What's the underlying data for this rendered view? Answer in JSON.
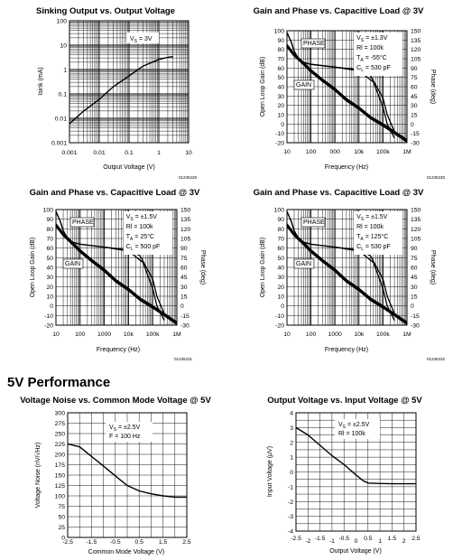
{
  "page": {
    "section_title": "5V Performance"
  },
  "chart_data": [
    {
      "type": "line",
      "title": "Sinking Output vs. Output Voltage",
      "xlabel": "Output Voltage (V)",
      "ylabel": "Isink (mA)",
      "figure_code": "01235229",
      "x_scale": "log",
      "y_scale": "log",
      "xlim": [
        0.001,
        10
      ],
      "ylim": [
        0.001,
        100
      ],
      "x_ticks": [
        "0.001",
        "0.01",
        "0.1",
        "1",
        "10"
      ],
      "y_ticks": [
        "100",
        "10",
        "1",
        "0.1",
        "0.01",
        "0.001"
      ],
      "annotations": [
        "VS = 3V"
      ],
      "series": [
        {
          "x": [
            0.001,
            0.003,
            0.01,
            0.03,
            0.1,
            0.3,
            1,
            2,
            3
          ],
          "values": [
            0.006,
            0.02,
            0.06,
            0.2,
            0.55,
            1.4,
            2.6,
            3.2,
            3.4
          ]
        }
      ]
    },
    {
      "type": "line",
      "title": "Gain and Phase vs. Capacitive Load @ 3V",
      "xlabel": "Frequency (Hz)",
      "ylabel": "Open Loop Gain (dB)",
      "y2label": "Phase (deg)",
      "figure_code": "01235230",
      "x_scale": "log",
      "xlim": [
        10,
        1000000
      ],
      "ylim": [
        -20,
        100
      ],
      "y2lim": [
        -30,
        150
      ],
      "x_ticks": [
        "10",
        "100",
        "000",
        "10k",
        "100k",
        "1M"
      ],
      "y_ticks": [
        "100",
        "90",
        "80",
        "70",
        "60",
        "50",
        "40",
        "30",
        "20",
        "10",
        "0",
        "-10",
        "-20"
      ],
      "y2_ticks": [
        "150",
        "135",
        "120",
        "105",
        "90",
        "75",
        "60",
        "45",
        "30",
        "15",
        "0",
        "-15",
        "-30"
      ],
      "annotations": [
        "VS = ±1.3V",
        "Rl = 100k",
        "TA = -55°C",
        "CL = 530 pF",
        "PHASE",
        "GAIN"
      ],
      "series": [
        {
          "x": [
            10,
            15,
            20,
            30,
            50,
            100,
            1000,
            10000,
            30000,
            100000,
            150000,
            300000
          ],
          "values": [
            98,
            88,
            78,
            70,
            66,
            64,
            61,
            58,
            52,
            28,
            10,
            -8
          ]
        },
        {
          "x": [
            10,
            15,
            20,
            30,
            50,
            100,
            1000,
            10000,
            40000,
            100000,
            150000,
            300000
          ],
          "values": [
            98,
            88,
            78,
            70,
            66,
            64,
            61,
            57,
            45,
            18,
            0,
            -15
          ]
        },
        {
          "x": [
            10,
            20,
            40,
            100,
            300,
            1000,
            3000,
            10000,
            30000,
            100000,
            300000,
            1000000
          ],
          "values": [
            85,
            75,
            68,
            58,
            48,
            38,
            27,
            18,
            8,
            0,
            -8,
            -17
          ]
        },
        {
          "x": [
            10,
            20,
            40,
            100,
            300,
            1000,
            3000,
            10000,
            30000,
            100000,
            300000,
            1000000
          ],
          "values": [
            83,
            73,
            66,
            56,
            46,
            36,
            25,
            16,
            6,
            -2,
            -10,
            -19
          ]
        }
      ]
    },
    {
      "type": "line",
      "title": "Gain and Phase vs. Capacitive Load @ 3V",
      "xlabel": "Frequency (Hz)",
      "ylabel": "Open Loop Gain (dB)",
      "y2label": "Phase (deg)",
      "figure_code": "01235231",
      "x_scale": "log",
      "xlim": [
        10,
        1000000
      ],
      "ylim": [
        -20,
        100
      ],
      "y2lim": [
        -30,
        150
      ],
      "x_ticks": [
        "10",
        "100",
        "1000",
        "10k",
        "100k",
        "1M"
      ],
      "y_ticks": [
        "100",
        "90",
        "80",
        "70",
        "60",
        "50",
        "40",
        "30",
        "20",
        "10",
        "0",
        "-10",
        "-20"
      ],
      "y2_ticks": [
        "150",
        "135",
        "120",
        "105",
        "90",
        "75",
        "60",
        "45",
        "30",
        "15",
        "0",
        "-15",
        "-30"
      ],
      "annotations": [
        "VS = ±1.5V",
        "Rl = 100k",
        "TA = 25°C",
        "CL = 500 pF",
        "PHASE",
        "GAIN"
      ],
      "series": [
        {
          "x": [
            10,
            15,
            20,
            30,
            50,
            100,
            1000,
            10000,
            30000,
            100000,
            150000,
            300000
          ],
          "values": [
            98,
            88,
            78,
            70,
            66,
            64,
            61,
            58,
            52,
            28,
            10,
            -8
          ]
        },
        {
          "x": [
            10,
            15,
            20,
            30,
            50,
            100,
            1000,
            10000,
            40000,
            100000,
            150000,
            300000
          ],
          "values": [
            98,
            88,
            78,
            70,
            66,
            64,
            61,
            57,
            45,
            18,
            0,
            -15
          ]
        },
        {
          "x": [
            10,
            20,
            40,
            100,
            300,
            1000,
            3000,
            10000,
            30000,
            100000,
            300000,
            1000000
          ],
          "values": [
            85,
            75,
            68,
            58,
            48,
            38,
            27,
            18,
            8,
            0,
            -8,
            -17
          ]
        },
        {
          "x": [
            10,
            20,
            40,
            100,
            300,
            1000,
            3000,
            10000,
            30000,
            100000,
            300000,
            1000000
          ],
          "values": [
            83,
            73,
            66,
            56,
            46,
            36,
            25,
            16,
            6,
            -2,
            -10,
            -19
          ]
        }
      ]
    },
    {
      "type": "line",
      "title": "Gain and Phase vs. Capacitive Load @ 3V",
      "xlabel": "Frequency (Hz)",
      "ylabel": "Open Loop Gain (dB)",
      "y2label": "Phase (deg)",
      "figure_code": "01235232",
      "x_scale": "log",
      "xlim": [
        10,
        1000000
      ],
      "ylim": [
        -20,
        100
      ],
      "y2lim": [
        -30,
        150
      ],
      "x_ticks": [
        "10",
        "100",
        "1000",
        "10k",
        "100k",
        "1M"
      ],
      "y_ticks": [
        "100",
        "90",
        "80",
        "70",
        "60",
        "50",
        "40",
        "30",
        "20",
        "10",
        "0",
        "-10",
        "-20"
      ],
      "y2_ticks": [
        "150",
        "135",
        "120",
        "105",
        "90",
        "75",
        "60",
        "45",
        "30",
        "15",
        "0",
        "-15",
        "-30"
      ],
      "annotations": [
        "VS = ±1.5V",
        "Rl = 100k",
        "TA = 125°C",
        "CL = 530 pF",
        "PHASE",
        "GAIN"
      ],
      "series": [
        {
          "x": [
            10,
            15,
            20,
            30,
            50,
            100,
            1000,
            10000,
            30000,
            100000,
            150000,
            300000
          ],
          "values": [
            98,
            88,
            78,
            70,
            66,
            64,
            61,
            58,
            52,
            28,
            10,
            -8
          ]
        },
        {
          "x": [
            10,
            15,
            20,
            30,
            50,
            100,
            1000,
            10000,
            40000,
            100000,
            150000,
            300000
          ],
          "values": [
            98,
            88,
            78,
            70,
            66,
            64,
            61,
            57,
            45,
            18,
            0,
            -15
          ]
        },
        {
          "x": [
            10,
            20,
            40,
            100,
            300,
            1000,
            3000,
            10000,
            30000,
            100000,
            300000,
            1000000
          ],
          "values": [
            85,
            75,
            68,
            58,
            48,
            38,
            27,
            18,
            8,
            0,
            -8,
            -17
          ]
        },
        {
          "x": [
            10,
            20,
            40,
            100,
            300,
            1000,
            3000,
            10000,
            30000,
            100000,
            300000,
            1000000
          ],
          "values": [
            83,
            73,
            66,
            56,
            46,
            36,
            25,
            16,
            6,
            -2,
            -10,
            -19
          ]
        }
      ]
    },
    {
      "type": "line",
      "title": "Voltage Noise vs. Common Mode Voltage @ 5V",
      "xlabel": "Common Mode Voltage (V)",
      "ylabel": "Voltage Noise (nV/√Hz)",
      "xlim": [
        -2.5,
        2.5
      ],
      "ylim": [
        0,
        300
      ],
      "x_ticks": [
        "-2.5",
        "-1.5",
        "-0.5",
        "0.5",
        "1.5",
        "2.5"
      ],
      "y_ticks": [
        "300",
        "275",
        "250",
        "225",
        "200",
        "175",
        "150",
        "125",
        "100",
        "75",
        "50",
        "25",
        "0"
      ],
      "annotations": [
        "VS = ±2.5V",
        "F = 100 Hz"
      ],
      "series": [
        {
          "x": [
            -2.5,
            -2.0,
            -1.5,
            -1.0,
            -0.5,
            0.0,
            0.5,
            1.0,
            1.5,
            2.0,
            2.5
          ],
          "values": [
            225,
            218,
            195,
            172,
            148,
            125,
            112,
            105,
            100,
            97,
            97
          ]
        }
      ]
    },
    {
      "type": "line",
      "title": "Output Voltage vs. Input Voltage @ 5V",
      "xlabel": "Output Voltage (V)",
      "ylabel": "Input Voltage (μV)",
      "xlim": [
        -2.5,
        2.5
      ],
      "ylim": [
        -4,
        4
      ],
      "x_ticks": [
        "-2.5",
        "-2",
        "-1.5",
        "-1",
        "-0.5",
        "0",
        "0.5",
        "1",
        "1.5",
        "2",
        "2.5"
      ],
      "y_ticks": [
        "4",
        "3",
        "2",
        "1",
        "0",
        "-1",
        "-2",
        "-3",
        "-4"
      ],
      "annotations": [
        "VS = ±2.5V",
        "Rl = 100k"
      ],
      "series": [
        {
          "x": [
            -2.5,
            -2.0,
            -1.5,
            -1.0,
            -0.5,
            0.0,
            0.3,
            0.5,
            1.0,
            1.5,
            2.0,
            2.5
          ],
          "values": [
            3.0,
            2.5,
            1.8,
            1.1,
            0.5,
            -0.2,
            -0.6,
            -0.75,
            -0.78,
            -0.8,
            -0.8,
            -0.8
          ]
        }
      ]
    }
  ]
}
